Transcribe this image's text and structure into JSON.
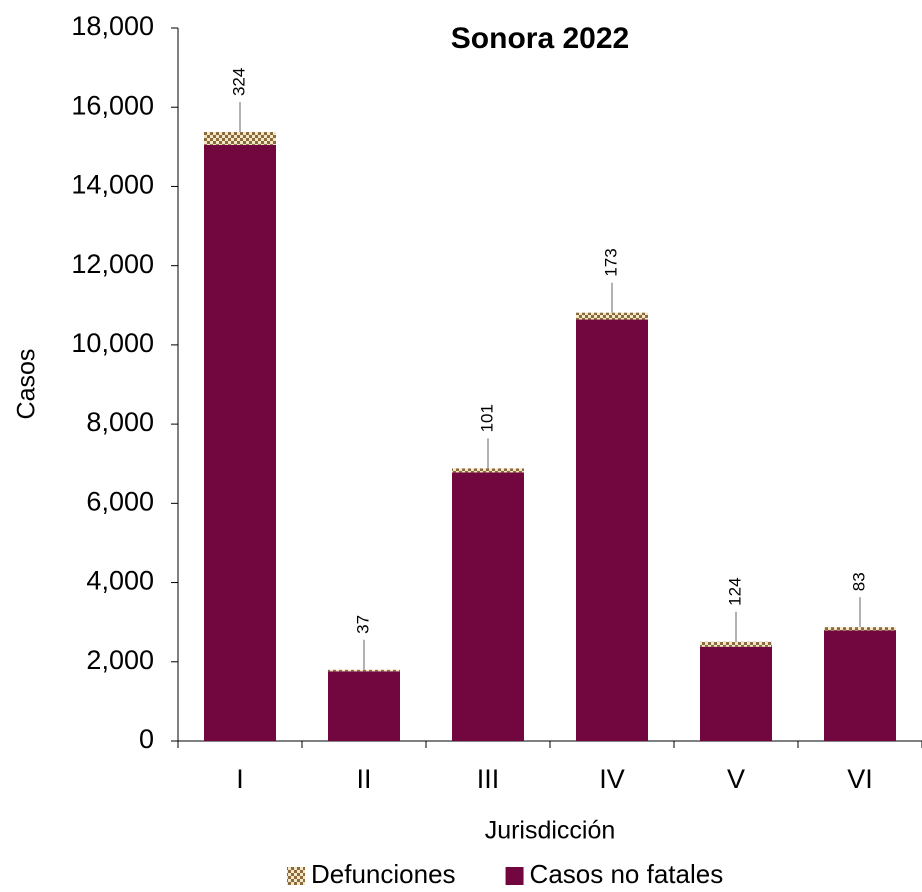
{
  "chart_data": {
    "type": "stacked_bar",
    "title": "Sonora 2022",
    "x_label": "Jurisdicción",
    "y_label": "Casos",
    "categories": [
      "I",
      "II",
      "III",
      "IV",
      "V",
      "VI"
    ],
    "series": [
      {
        "name": "Casos no fatales",
        "color": "#72073f",
        "values": [
          15050,
          1760,
          6780,
          10640,
          2380,
          2790
        ]
      },
      {
        "name": "Defunciones",
        "color": "#8b6a3e",
        "values": [
          324,
          37,
          101,
          173,
          124,
          83
        ]
      }
    ],
    "ylim": [
      0,
      18000
    ],
    "yticks": [
      0,
      {
        "value": 2000,
        "label": "2,000"
      },
      {
        "value": 4000,
        "label": "4,000"
      },
      {
        "value": 6000,
        "label": "6,000"
      },
      {
        "value": 8000,
        "label": "8,000"
      },
      {
        "value": 10000,
        "label": "10,000"
      },
      {
        "value": 12000,
        "label": "12,000"
      },
      {
        "value": 14000,
        "label": "14,000"
      },
      {
        "value": 16000,
        "label": "16,000"
      },
      {
        "value": 18000,
        "label": "18,000"
      }
    ],
    "legend": "bottom"
  }
}
